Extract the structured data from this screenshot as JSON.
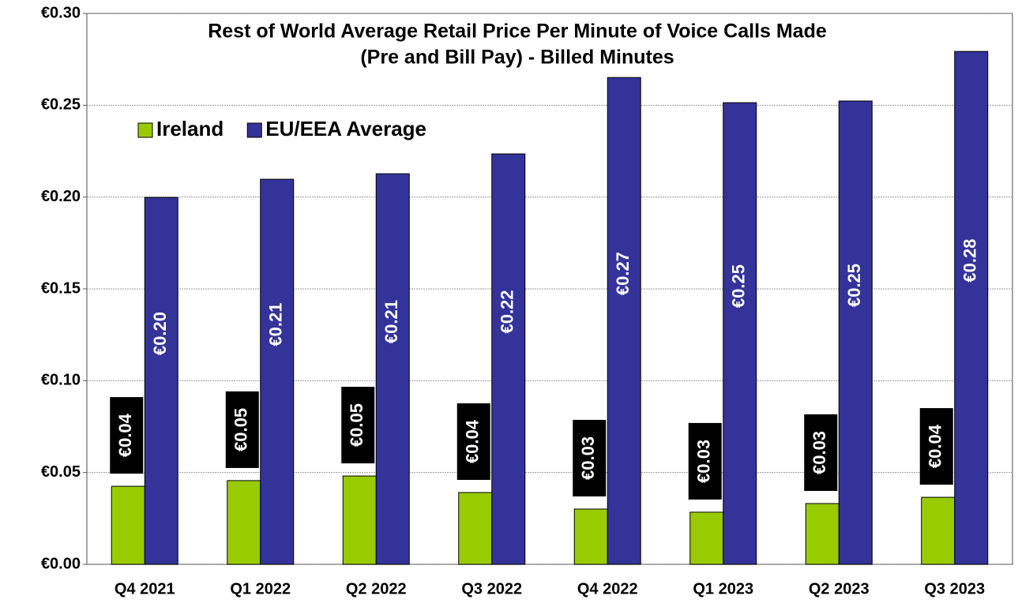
{
  "chart_data": {
    "type": "bar",
    "title": [
      "Rest of World Average Retail Price Per Minute of Voice Calls Made",
      "(Pre and Bill Pay) - Billed Minutes"
    ],
    "categories": [
      "Q4 2021",
      "Q1 2022",
      "Q2 2022",
      "Q3 2022",
      "Q4 2022",
      "Q1 2023",
      "Q2 2023",
      "Q3 2023"
    ],
    "series": [
      {
        "name": "Ireland",
        "color": "#99cc00",
        "values": [
          0.0425,
          0.0456,
          0.0481,
          0.0391,
          0.0301,
          0.0284,
          0.0331,
          0.0365
        ],
        "value_labels": [
          "€0.04",
          "€0.05",
          "€0.05",
          "€0.04",
          "€0.03",
          "€0.03",
          "€0.03",
          "€0.04"
        ]
      },
      {
        "name": "EU/EEA Average",
        "color": "#333399",
        "values": [
          0.1998,
          0.2097,
          0.2127,
          0.2235,
          0.2651,
          0.2514,
          0.2523,
          0.2793
        ],
        "value_labels": [
          "€0.20",
          "€0.21",
          "€0.21",
          "€0.22",
          "€0.27",
          "€0.25",
          "€0.25",
          "€0.28"
        ]
      }
    ],
    "ylim": [
      0,
      0.3
    ],
    "yticks": [
      {
        "value": 0,
        "label": "€0.00"
      },
      {
        "value": 0.05,
        "label": "€0.05"
      },
      {
        "value": 0.1,
        "label": "€0.10"
      },
      {
        "value": 0.15,
        "label": "€0.15"
      },
      {
        "value": 0.2,
        "label": "€0.20"
      },
      {
        "value": 0.25,
        "label": "€0.25"
      },
      {
        "value": 0.3,
        "label": "€0.30"
      }
    ],
    "grid": true,
    "legend": "top-left"
  }
}
